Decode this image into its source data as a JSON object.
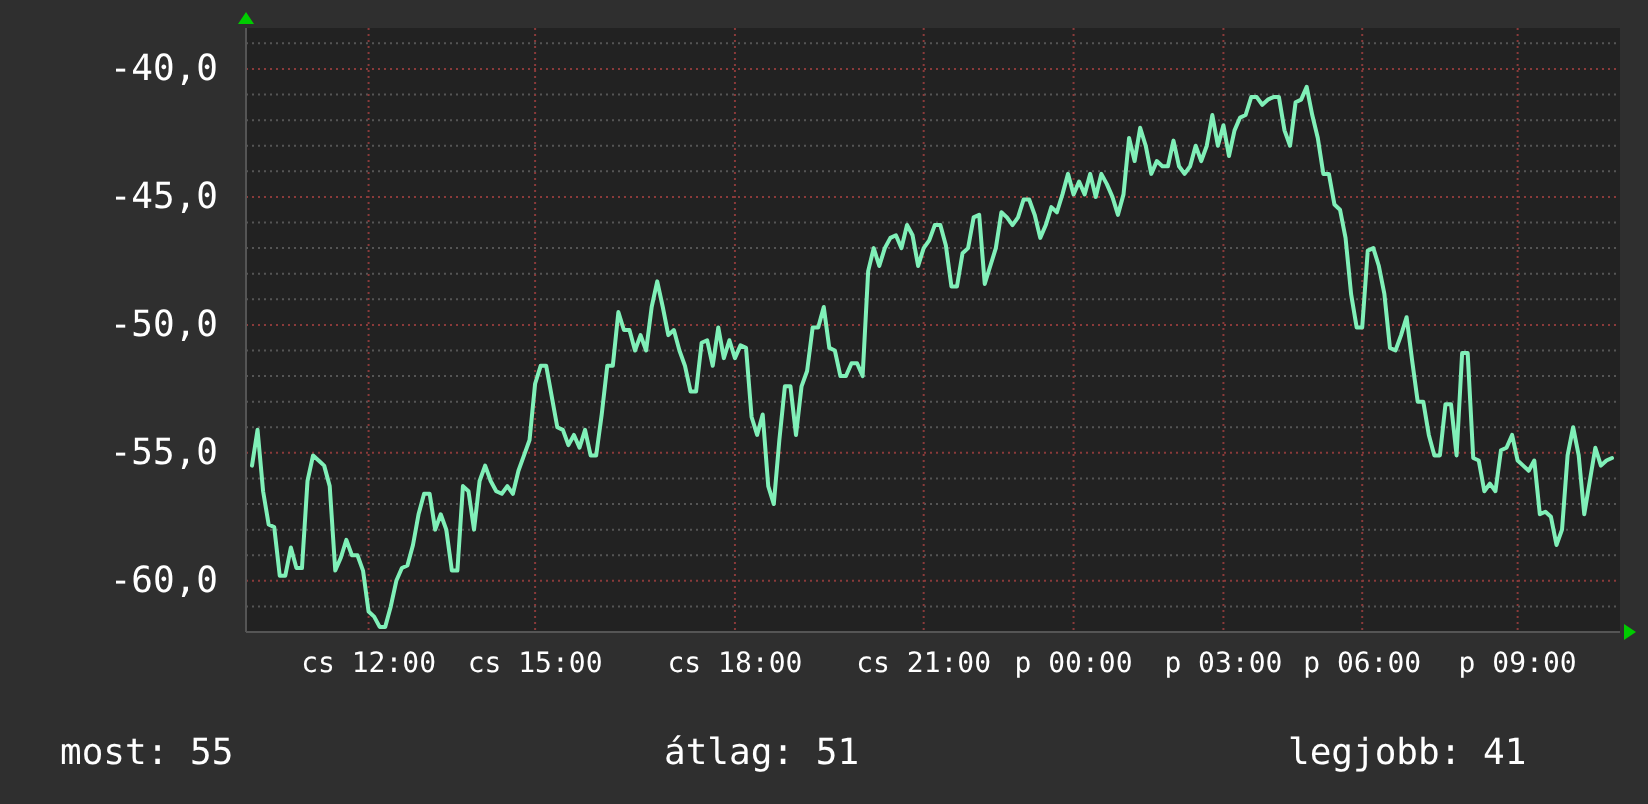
{
  "chart_data": {
    "type": "line",
    "ylim": [
      -62,
      -38.4
    ],
    "categories": [
      null,
      null,
      null,
      null,
      null,
      null,
      null,
      null,
      null,
      null,
      null,
      null,
      null,
      null,
      null,
      null,
      null,
      null,
      null,
      null,
      null,
      "cs 12:00",
      null,
      null,
      null,
      null,
      null,
      null,
      null,
      null,
      null,
      null,
      null,
      null,
      null,
      null,
      null,
      null,
      null,
      null,
      null,
      null,
      null,
      null,
      null,
      null,
      null,
      null,
      null,
      null,
      null,
      "cs 15:00",
      null,
      null,
      null,
      null,
      null,
      null,
      null,
      null,
      null,
      null,
      null,
      null,
      null,
      null,
      null,
      null,
      null,
      null,
      null,
      null,
      null,
      null,
      null,
      null,
      null,
      null,
      null,
      null,
      null,
      null,
      null,
      null,
      null,
      null,
      null,
      "cs 18:00",
      null,
      null,
      null,
      null,
      null,
      null,
      null,
      null,
      null,
      null,
      null,
      null,
      null,
      null,
      null,
      null,
      null,
      null,
      null,
      null,
      null,
      null,
      null,
      null,
      null,
      null,
      null,
      null,
      null,
      null,
      null,
      null,
      null,
      "cs 21:00",
      null,
      null,
      null,
      null,
      null,
      null,
      null,
      null,
      null,
      null,
      null,
      null,
      null,
      null,
      null,
      null,
      null,
      null,
      null,
      null,
      null,
      null,
      null,
      null,
      null,
      null,
      "p 00:00",
      null,
      null,
      null,
      null,
      null,
      null,
      null,
      null,
      null,
      null,
      null,
      null,
      null,
      null,
      null,
      null,
      null,
      null,
      null,
      null,
      null,
      null,
      null,
      null,
      null,
      null,
      "p 03:00",
      null,
      null,
      null,
      null,
      null,
      null,
      null,
      null,
      null,
      null,
      null,
      null,
      null,
      null,
      null,
      null,
      null,
      null,
      null,
      null,
      null,
      null,
      null,
      null,
      "p 06:00",
      null,
      null,
      null,
      null,
      null,
      null,
      null,
      null,
      null,
      null,
      null,
      null,
      null,
      null,
      null,
      null,
      null,
      null,
      null,
      null,
      null,
      null,
      null,
      null,
      null,
      null,
      null,
      "p 09:00",
      null,
      null,
      null,
      null,
      null,
      null,
      null,
      null,
      null,
      null,
      null,
      null,
      null,
      null,
      null,
      null,
      null
    ],
    "yticks": [
      {
        "value": -61,
        "label": null
      },
      {
        "value": -60,
        "label": "-60,0"
      },
      {
        "value": -59,
        "label": null
      },
      {
        "value": -58,
        "label": null
      },
      {
        "value": -57,
        "label": null
      },
      {
        "value": -56,
        "label": null
      },
      {
        "value": -55,
        "label": "-55,0"
      },
      {
        "value": -54,
        "label": null
      },
      {
        "value": -53,
        "label": null
      },
      {
        "value": -52,
        "label": null
      },
      {
        "value": -51,
        "label": null
      },
      {
        "value": -50,
        "label": "-50,0"
      },
      {
        "value": -49,
        "label": null
      },
      {
        "value": -48,
        "label": null
      },
      {
        "value": -47,
        "label": null
      },
      {
        "value": -46,
        "label": null
      },
      {
        "value": -45,
        "label": "-45,0"
      },
      {
        "value": -44,
        "label": null
      },
      {
        "value": -43,
        "label": null
      },
      {
        "value": -42,
        "label": null
      },
      {
        "value": -41,
        "label": null
      },
      {
        "value": -40,
        "label": "-40,0"
      },
      {
        "value": -39,
        "label": null
      }
    ],
    "grid": true,
    "annotations": [
      "most: 55",
      "átlag: 51",
      "legjobb: 41"
    ],
    "series": [
      {
        "color": "#80f0b8",
        "values": [
          -55.5,
          -54.1,
          -56.5,
          -57.8,
          -57.9,
          -59.8,
          -59.8,
          -58.7,
          -59.5,
          -59.5,
          -56.1,
          -55.1,
          -55.3,
          -55.5,
          -56.3,
          -59.6,
          -59.1,
          -58.4,
          -59.0,
          -59.0,
          -59.6,
          -61.2,
          -61.4,
          -61.8,
          -61.8,
          -61.0,
          -60.0,
          -59.5,
          -59.4,
          -58.6,
          -57.4,
          -56.6,
          -56.6,
          -58.0,
          -57.4,
          -58.0,
          -59.6,
          -59.6,
          -56.3,
          -56.5,
          -58.0,
          -56.1,
          -55.5,
          -56.1,
          -56.5,
          -56.6,
          -56.3,
          -56.6,
          -55.7,
          -55.1,
          -54.5,
          -52.3,
          -51.6,
          -51.6,
          -52.8,
          -54.0,
          -54.1,
          -54.7,
          -54.3,
          -54.8,
          -54.1,
          -55.1,
          -55.1,
          -53.5,
          -51.6,
          -51.6,
          -49.5,
          -50.2,
          -50.2,
          -51.0,
          -50.4,
          -51.0,
          -49.3,
          -48.3,
          -49.3,
          -50.4,
          -50.2,
          -51.0,
          -51.6,
          -52.6,
          -52.6,
          -50.7,
          -50.6,
          -51.6,
          -50.1,
          -51.3,
          -50.6,
          -51.3,
          -50.8,
          -50.9,
          -53.6,
          -54.3,
          -53.5,
          -56.3,
          -57.0,
          -54.5,
          -52.4,
          -52.4,
          -54.3,
          -52.4,
          -51.8,
          -50.1,
          -50.1,
          -49.3,
          -50.9,
          -51.0,
          -52.0,
          -52.0,
          -51.5,
          -51.5,
          -52.0,
          -47.9,
          -47.0,
          -47.7,
          -47.0,
          -46.6,
          -46.5,
          -47.0,
          -46.1,
          -46.5,
          -47.7,
          -47.0,
          -46.7,
          -46.1,
          -46.1,
          -46.9,
          -48.5,
          -48.5,
          -47.2,
          -47.0,
          -45.8,
          -45.7,
          -48.4,
          -47.7,
          -47.0,
          -45.6,
          -45.8,
          -46.1,
          -45.8,
          -45.1,
          -45.1,
          -45.7,
          -46.6,
          -46.1,
          -45.4,
          -45.6,
          -44.9,
          -44.1,
          -44.9,
          -44.4,
          -44.9,
          -44.1,
          -45.0,
          -44.1,
          -44.5,
          -45.0,
          -45.7,
          -44.9,
          -42.7,
          -43.6,
          -42.3,
          -43.0,
          -44.1,
          -43.6,
          -43.8,
          -43.8,
          -42.8,
          -43.8,
          -44.1,
          -43.8,
          -43.0,
          -43.6,
          -43.0,
          -41.8,
          -43.0,
          -42.2,
          -43.4,
          -42.4,
          -41.9,
          -41.8,
          -41.1,
          -41.1,
          -41.4,
          -41.2,
          -41.1,
          -41.1,
          -42.4,
          -43.0,
          -41.3,
          -41.2,
          -40.7,
          -41.8,
          -42.7,
          -44.1,
          -44.1,
          -45.3,
          -45.5,
          -46.6,
          -48.8,
          -50.1,
          -50.1,
          -47.1,
          -47.0,
          -47.7,
          -48.8,
          -50.9,
          -51.0,
          -50.4,
          -49.7,
          -51.4,
          -53.0,
          -53.0,
          -54.3,
          -55.1,
          -55.1,
          -53.1,
          -53.1,
          -55.1,
          -51.1,
          -51.1,
          -55.2,
          -55.3,
          -56.5,
          -56.2,
          -56.5,
          -54.9,
          -54.8,
          -54.3,
          -55.3,
          -55.5,
          -55.7,
          -55.3,
          -57.4,
          -57.3,
          -57.5,
          -58.6,
          -58.0,
          -55.1,
          -54.0,
          -55.1,
          -57.4,
          -56.1,
          -54.8,
          -55.5,
          -55.3,
          -55.2
        ]
      }
    ]
  }
}
